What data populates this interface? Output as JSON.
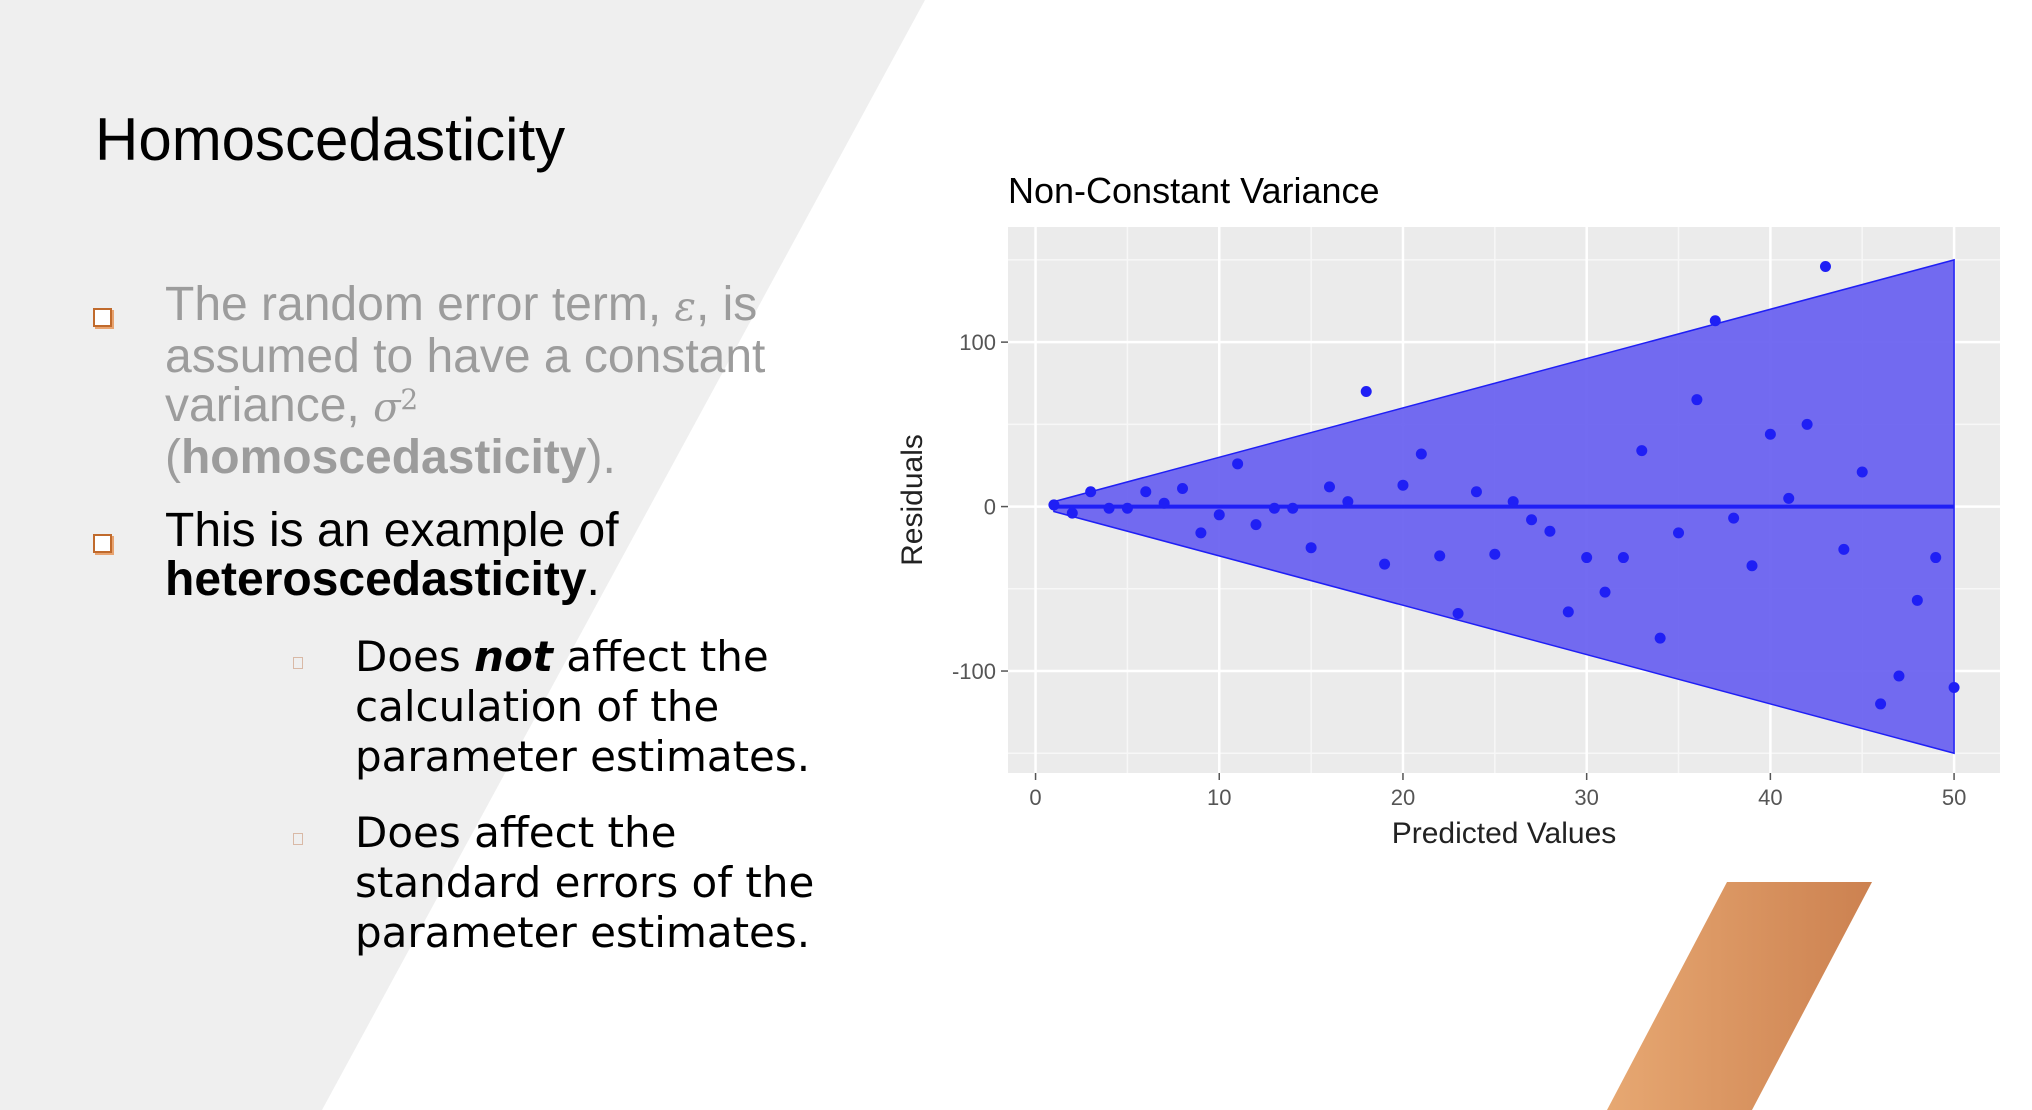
{
  "slide": {
    "title": "Homoscedasticity",
    "bullet1": {
      "text_a": "The random error term, ",
      "epsilon": "ε",
      "text_b": ", is assumed to have a constant variance, ",
      "sigma": "σ",
      "sigma_sup": "2",
      "text_c": " (",
      "bold": "homoscedasticity",
      "text_d": ")."
    },
    "bullet2": {
      "text_a": "This is an example of ",
      "bold": "heteroscedasticity",
      "text_b": "."
    },
    "sub1": {
      "text_a": "Does ",
      "emph": "not",
      "text_b": " affect the calculation of the parameter estimates."
    },
    "sub2": {
      "text": "Does affect the standard errors of the parameter estimates."
    }
  },
  "colors": {
    "bullet_marker": "#c06a2c",
    "accent_light": "#e7a872",
    "accent_dark": "#cc8150",
    "band_fill": "#6b63f0",
    "band_edge": "#1f1ff5",
    "points": "#1f1ff5",
    "panel_bg": "#ebebeb"
  },
  "chart_data": {
    "type": "scatter",
    "title": "Non-Constant Variance",
    "xlabel": "Predicted Values",
    "ylabel": "Residuals",
    "xlim": [
      -1.5,
      52.5
    ],
    "ylim": [
      -162,
      170
    ],
    "xticks": [
      0,
      10,
      20,
      30,
      40,
      50
    ],
    "yticks": [
      -100,
      0,
      100
    ],
    "xtick_labels": [
      "0",
      "10",
      "20",
      "30",
      "40",
      "50"
    ],
    "ytick_labels": [
      "-100",
      "0",
      "100"
    ],
    "grid": true,
    "reference_line": {
      "y": 0,
      "from_x": 1,
      "to_x": 50
    },
    "band": {
      "from_x": 1,
      "to_x": 50,
      "half_width_at_start": 3,
      "half_width_at_end": 150
    },
    "points": [
      [
        1,
        1
      ],
      [
        2,
        -4
      ],
      [
        3,
        9
      ],
      [
        4,
        -1
      ],
      [
        5,
        -1
      ],
      [
        6,
        9
      ],
      [
        7,
        2
      ],
      [
        8,
        11
      ],
      [
        9,
        -16
      ],
      [
        10,
        -5
      ],
      [
        11,
        26
      ],
      [
        12,
        -11
      ],
      [
        13,
        -1
      ],
      [
        14,
        -1
      ],
      [
        15,
        -25
      ],
      [
        16,
        12
      ],
      [
        17,
        3
      ],
      [
        18,
        70
      ],
      [
        19,
        -35
      ],
      [
        20,
        13
      ],
      [
        21,
        32
      ],
      [
        22,
        -30
      ],
      [
        23,
        -65
      ],
      [
        24,
        9
      ],
      [
        25,
        -29
      ],
      [
        26,
        3
      ],
      [
        27,
        -8
      ],
      [
        28,
        -15
      ],
      [
        29,
        -64
      ],
      [
        30,
        -31
      ],
      [
        31,
        -52
      ],
      [
        32,
        -31
      ],
      [
        33,
        34
      ],
      [
        34,
        -80
      ],
      [
        35,
        -16
      ],
      [
        36,
        65
      ],
      [
        37,
        113
      ],
      [
        38,
        -7
      ],
      [
        39,
        -36
      ],
      [
        40,
        44
      ],
      [
        41,
        5
      ],
      [
        42,
        50
      ],
      [
        43,
        146
      ],
      [
        44,
        -26
      ],
      [
        45,
        21
      ],
      [
        46,
        -120
      ],
      [
        47,
        -103
      ],
      [
        48,
        -57
      ],
      [
        49,
        -31
      ],
      [
        50,
        -110
      ]
    ]
  }
}
